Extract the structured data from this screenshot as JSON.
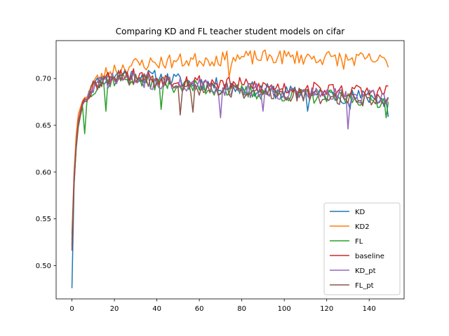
{
  "chart_data": {
    "type": "line",
    "title": "Comparing KD and FL teacher student models on cifar",
    "xlabel": "",
    "ylabel": "",
    "xlim": [
      -7.45,
      156.45
    ],
    "ylim": [
      0.4645,
      0.7405
    ],
    "x_ticks": [
      0,
      20,
      40,
      60,
      80,
      100,
      120,
      140
    ],
    "y_ticks": [
      0.5,
      0.55,
      0.6,
      0.65,
      0.7
    ],
    "x_tick_labels": [
      "0",
      "20",
      "40",
      "60",
      "80",
      "100",
      "120",
      "140"
    ],
    "y_tick_labels": [
      "0.50",
      "0.55",
      "0.60",
      "0.65",
      "0.70"
    ],
    "grid": false,
    "legend_position": "lower-right",
    "series": [
      {
        "name": "KD",
        "color": "#1f77b4",
        "start": 0,
        "seed": 11,
        "sharp_dips": [
          [
            111,
            0.665
          ],
          [
            131,
            0.667
          ],
          [
            147,
            0.67
          ]
        ],
        "keypoints": [
          [
            0,
            0.476
          ],
          [
            1,
            0.585
          ],
          [
            2,
            0.628
          ],
          [
            3,
            0.652
          ],
          [
            4,
            0.665
          ],
          [
            6,
            0.678
          ],
          [
            10,
            0.692
          ],
          [
            15,
            0.7
          ],
          [
            22,
            0.705
          ],
          [
            40,
            0.701
          ],
          [
            60,
            0.695
          ],
          [
            80,
            0.69
          ],
          [
            100,
            0.685
          ],
          [
            120,
            0.682
          ],
          [
            140,
            0.68
          ],
          [
            148,
            0.678
          ],
          [
            149,
            0.659
          ]
        ]
      },
      {
        "name": "KD2",
        "color": "#ff7f0e",
        "start": 0,
        "seed": 23,
        "sharp_dips": [
          [
            74,
            0.701
          ],
          [
            128,
            0.71
          ]
        ],
        "keypoints": [
          [
            0,
            0.534
          ],
          [
            1,
            0.6
          ],
          [
            2,
            0.64
          ],
          [
            3,
            0.662
          ],
          [
            5,
            0.676
          ],
          [
            10,
            0.695
          ],
          [
            15,
            0.704
          ],
          [
            20,
            0.71
          ],
          [
            30,
            0.715
          ],
          [
            45,
            0.718
          ],
          [
            60,
            0.72
          ],
          [
            80,
            0.722
          ],
          [
            100,
            0.723
          ],
          [
            120,
            0.722
          ],
          [
            140,
            0.72
          ],
          [
            148,
            0.718
          ],
          [
            149,
            0.712
          ]
        ]
      },
      {
        "name": "FL",
        "color": "#2ca02c",
        "start": 0,
        "seed": 37,
        "sharp_dips": [
          [
            6,
            0.641
          ],
          [
            16,
            0.665
          ],
          [
            42,
            0.667
          ],
          [
            148,
            0.658
          ]
        ],
        "keypoints": [
          [
            0,
            0.527
          ],
          [
            1,
            0.59
          ],
          [
            2,
            0.625
          ],
          [
            3,
            0.648
          ],
          [
            4,
            0.66
          ],
          [
            5,
            0.67
          ],
          [
            10,
            0.69
          ],
          [
            15,
            0.697
          ],
          [
            25,
            0.7
          ],
          [
            40,
            0.695
          ],
          [
            60,
            0.69
          ],
          [
            80,
            0.686
          ],
          [
            100,
            0.683
          ],
          [
            120,
            0.68
          ],
          [
            140,
            0.678
          ],
          [
            149,
            0.675
          ]
        ]
      },
      {
        "name": "baseline",
        "color": "#d62728",
        "start": 0,
        "seed": 53,
        "sharp_dips": [],
        "keypoints": [
          [
            0,
            0.522
          ],
          [
            1,
            0.595
          ],
          [
            2,
            0.63
          ],
          [
            3,
            0.655
          ],
          [
            5,
            0.675
          ],
          [
            10,
            0.692
          ],
          [
            15,
            0.7
          ],
          [
            25,
            0.705
          ],
          [
            40,
            0.7
          ],
          [
            60,
            0.697
          ],
          [
            80,
            0.693
          ],
          [
            100,
            0.69
          ],
          [
            120,
            0.688
          ],
          [
            140,
            0.685
          ],
          [
            148,
            0.686
          ],
          [
            149,
            0.692
          ]
        ]
      },
      {
        "name": "KD_pt",
        "color": "#9467bd",
        "start": 0,
        "seed": 71,
        "sharp_dips": [
          [
            70,
            0.658
          ],
          [
            90,
            0.665
          ],
          [
            130,
            0.646
          ]
        ],
        "keypoints": [
          [
            0,
            0.52
          ],
          [
            1,
            0.592
          ],
          [
            2,
            0.628
          ],
          [
            3,
            0.652
          ],
          [
            5,
            0.673
          ],
          [
            10,
            0.69
          ],
          [
            15,
            0.697
          ],
          [
            25,
            0.7
          ],
          [
            40,
            0.695
          ],
          [
            60,
            0.692
          ],
          [
            80,
            0.688
          ],
          [
            100,
            0.685
          ],
          [
            120,
            0.683
          ],
          [
            140,
            0.68
          ],
          [
            149,
            0.679
          ]
        ]
      },
      {
        "name": "FL_pt",
        "color": "#8c564b",
        "start": 0,
        "seed": 89,
        "sharp_dips": [
          [
            51,
            0.661
          ],
          [
            57,
            0.664
          ]
        ],
        "keypoints": [
          [
            0,
            0.516
          ],
          [
            1,
            0.588
          ],
          [
            2,
            0.626
          ],
          [
            3,
            0.65
          ],
          [
            5,
            0.672
          ],
          [
            10,
            0.69
          ],
          [
            15,
            0.698
          ],
          [
            25,
            0.702
          ],
          [
            40,
            0.697
          ],
          [
            60,
            0.69
          ],
          [
            80,
            0.686
          ],
          [
            100,
            0.683
          ],
          [
            120,
            0.68
          ],
          [
            140,
            0.678
          ],
          [
            149,
            0.68
          ]
        ]
      }
    ]
  }
}
